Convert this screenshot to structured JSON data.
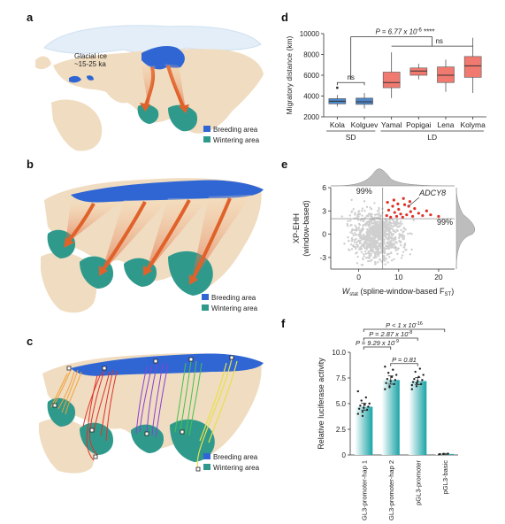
{
  "panels": {
    "a": {
      "label": "a",
      "ice_label_1": "Glacial ice",
      "ice_label_2": "~15-25 ka",
      "legend": {
        "breeding": "Breeding area",
        "wintering": "Wintering area"
      }
    },
    "b": {
      "label": "b",
      "legend": {
        "breeding": "Breeding area",
        "wintering": "Wintering area"
      }
    },
    "c": {
      "label": "c",
      "legend": {
        "breeding": "Breeding area",
        "wintering": "Wintering area"
      }
    },
    "d": {
      "label": "d"
    },
    "e": {
      "label": "e"
    },
    "f": {
      "label": "f"
    }
  },
  "colors": {
    "land": "#f0dcc0",
    "sea": "#ffffff",
    "breeding": "#2f66d4",
    "wintering": "#2f9a8c",
    "ice": "#dfeaf6",
    "arrow": "#e0622a",
    "box": "#f07a70",
    "box_blue": "#4f86c6",
    "scatter_grey": "#cfcfcf",
    "scatter_red": "#e0302a",
    "bar": "#1aa3a6"
  },
  "chart_data": [
    {
      "id": "d",
      "type": "box",
      "ylabel": "Migratory distance (km)",
      "ylim": [
        2000,
        10000
      ],
      "yticks": [
        "2000",
        "4000",
        "6000",
        "8000",
        "10000"
      ],
      "categories": [
        "Kola",
        "Kolguev",
        "Yamal",
        "Popigai",
        "Lena",
        "Kolyma"
      ],
      "groups": [
        {
          "name": "SD",
          "members": [
            "Kola",
            "Kolguev"
          ]
        },
        {
          "name": "LD",
          "members": [
            "Yamal",
            "Popigai",
            "Lena",
            "Kolyma"
          ]
        }
      ],
      "boxes": [
        {
          "name": "Kola",
          "min": 3000,
          "q1": 3250,
          "median": 3500,
          "q3": 3750,
          "max": 4100,
          "outliers": [
            4800
          ],
          "color": "#4f86c6"
        },
        {
          "name": "Kolguev",
          "min": 2800,
          "q1": 3200,
          "median": 3450,
          "q3": 3800,
          "max": 4300,
          "outliers": [],
          "color": "#4f86c6"
        },
        {
          "name": "Yamal",
          "min": 3800,
          "q1": 4800,
          "median": 5300,
          "q3": 6300,
          "max": 8200,
          "outliers": [],
          "color": "#f07a70"
        },
        {
          "name": "Popigai",
          "min": 5600,
          "q1": 6000,
          "median": 6400,
          "q3": 6700,
          "max": 7100,
          "outliers": [],
          "color": "#f07a70"
        },
        {
          "name": "Lena",
          "min": 4400,
          "q1": 5300,
          "median": 6000,
          "q3": 6800,
          "max": 7500,
          "outliers": [],
          "color": "#f07a70"
        },
        {
          "name": "Kolyma",
          "min": 4300,
          "q1": 5800,
          "median": 6900,
          "q3": 7800,
          "max": 9600,
          "outliers": [],
          "color": "#f07a70"
        }
      ],
      "annotations": {
        "p_top": "P = 6.77 x 10",
        "p_top_exp": "-6",
        "p_top_stars": " ****",
        "ns_sd": "ns",
        "ns_ld": "ns"
      }
    },
    {
      "id": "e",
      "type": "scatter",
      "ylabel_1": "XP-EHH",
      "ylabel_2": "(window-based)",
      "xlabel_pre": "W",
      "xlabel_sub": "stat",
      "xlabel_mid": " (spline-window-based F",
      "xlabel_sub2": "ST",
      "xlabel_post": ")",
      "xlim": [
        -7,
        24
      ],
      "ylim": [
        -4.5,
        6
      ],
      "xticks": [
        "0",
        "10",
        "20"
      ],
      "yticks": [
        "-3",
        "0",
        "3",
        "6"
      ],
      "threshold_x": 6,
      "threshold_y": 2,
      "label_topleft": "99%",
      "label_right": "99%",
      "gene_label": "ADCY8",
      "gene_point": [
        12.5,
        3.6
      ],
      "highlight_points": [
        [
          7,
          2.4
        ],
        [
          7.5,
          3.1
        ],
        [
          8,
          2.2
        ],
        [
          8.5,
          3.6
        ],
        [
          9,
          2.8
        ],
        [
          9.5,
          2.3
        ],
        [
          10,
          3.2
        ],
        [
          10.5,
          2.6
        ],
        [
          11,
          2.2
        ],
        [
          11.5,
          3.8
        ],
        [
          12,
          2.5
        ],
        [
          12.5,
          3.6
        ],
        [
          13,
          2.9
        ],
        [
          13.5,
          2.3
        ],
        [
          14,
          3.3
        ],
        [
          15,
          2.7
        ],
        [
          16,
          2.4
        ],
        [
          17,
          3.0
        ],
        [
          18,
          2.5
        ],
        [
          20,
          2.3
        ],
        [
          7.2,
          4.1
        ],
        [
          8.8,
          4.4
        ],
        [
          9.8,
          3.9
        ],
        [
          11.2,
          4.6
        ],
        [
          12.8,
          4.2
        ]
      ]
    },
    {
      "id": "f",
      "type": "bar",
      "ylabel": "Relative luciferase activity",
      "ylim": [
        0,
        10
      ],
      "yticks": [
        "0",
        "2.5",
        "5.0",
        "7.5",
        "10.0"
      ],
      "categories": [
        "pGL3-promoter-hap 1",
        "pGL3-promoter-hap 2",
        "pGL3-promoter",
        "pGL3-basic"
      ],
      "values": [
        4.7,
        7.3,
        7.2,
        0.1
      ],
      "errors": [
        0.35,
        0.4,
        0.35,
        0.05
      ],
      "comparisons": [
        {
          "text": "P < 1 x 10",
          "exp": "-16",
          "from": 0,
          "to": 3
        },
        {
          "text": "P = 2.87 x 10",
          "exp": "-8",
          "from": 0,
          "to": 2
        },
        {
          "text": "P = 9.29 x 10",
          "exp": "-9",
          "from": 0,
          "to": 1
        },
        {
          "text": "P = 0.81",
          "exp": "",
          "from": 1,
          "to": 2
        }
      ],
      "dots": [
        [
          4.0,
          4.2,
          4.4,
          4.5,
          4.6,
          4.7,
          4.8,
          4.9,
          5.0,
          5.3,
          5.6,
          6.2,
          3.8
        ],
        [
          6.4,
          6.7,
          6.9,
          7.0,
          7.2,
          7.3,
          7.4,
          7.6,
          7.8,
          8.0,
          8.3,
          8.6,
          6.6
        ],
        [
          6.4,
          6.7,
          6.9,
          7.1,
          7.2,
          7.3,
          7.4,
          7.6,
          7.8,
          8.1,
          8.4,
          6.8,
          7.0
        ],
        [
          0.05,
          0.1,
          0.12,
          0.08
        ]
      ]
    }
  ]
}
